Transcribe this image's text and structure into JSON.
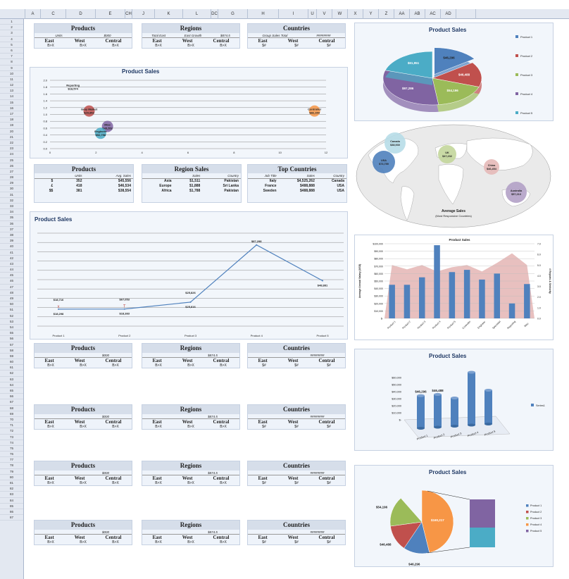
{
  "columns": [
    "",
    "A",
    "C",
    "D",
    "E",
    "CH",
    "J",
    "K",
    "L",
    "DC",
    "G",
    "H",
    "I",
    "U",
    "V",
    "W",
    "X",
    "Y",
    "Z",
    "AA",
    "AB",
    "AC",
    "AD",
    ""
  ],
  "rows": [
    "1",
    "2",
    "3",
    "4",
    "5",
    "6",
    "7",
    "8",
    "9",
    "10",
    "11",
    "12",
    "13",
    "14",
    "15",
    "16",
    "17",
    "18",
    "19",
    "20",
    "21",
    "22",
    "23",
    "24",
    "25",
    "26",
    "27",
    "28",
    "29",
    "30",
    "31",
    "32",
    "33",
    "34",
    "35",
    "36",
    "37",
    "38",
    "39",
    "40",
    "41",
    "42",
    "43",
    "44",
    "45",
    "46",
    "47",
    "48",
    "49",
    "50",
    "51",
    "52",
    "53",
    "54",
    "55",
    "56",
    "57",
    "58",
    "59",
    "60",
    "61",
    "62",
    "63",
    "64",
    "65",
    "66",
    "67",
    "68",
    "69",
    "70",
    "71",
    "72",
    "73",
    "74",
    "75",
    "76",
    "77",
    "78",
    "79",
    "80",
    "81",
    "82",
    "83",
    "84",
    "85",
    "86",
    "87"
  ],
  "kpi_rows": [
    {
      "products": {
        "title": "Products",
        "sub": [
          "Units",
          "$000"
        ],
        "heads": [
          "East",
          "West",
          "Central"
        ],
        "vals": [
          "B>X",
          "B>X",
          "B>X"
        ]
      },
      "regions": {
        "title": "Regions",
        "sub": [
          "Total East",
          "East Growth",
          "$874.5"
        ],
        "heads": [
          "East",
          "West",
          "Central"
        ],
        "vals": [
          "B>X",
          "B>X",
          "B>X"
        ]
      },
      "countries": {
        "title": "Countries",
        "sub": [
          "Group Sales Total",
          "########"
        ],
        "heads": [
          "East",
          "West",
          "Central"
        ],
        "vals": [
          "$#",
          "$#",
          "$#"
        ]
      }
    },
    {
      "products": {
        "title": "Products",
        "sub": [
          "",
          "$000"
        ],
        "heads": [
          "East",
          "West",
          "Central"
        ],
        "vals": [
          "B>X",
          "B>X",
          "B>X"
        ]
      },
      "regions": {
        "title": "Regions",
        "sub": [
          "",
          "$874.5"
        ],
        "heads": [
          "East",
          "West",
          "Central"
        ],
        "vals": [
          "B>X",
          "B>X",
          "B>X"
        ]
      },
      "countries": {
        "title": "Countries",
        "sub": [
          "",
          "########"
        ],
        "heads": [
          "East",
          "West",
          "Central"
        ],
        "vals": [
          "$#",
          "$#",
          "$#"
        ]
      }
    },
    {
      "products": {
        "title": "Products",
        "sub": [
          "",
          "$000"
        ],
        "heads": [
          "East",
          "West",
          "Central"
        ],
        "vals": [
          "B>X",
          "B>X",
          "B>X"
        ]
      },
      "regions": {
        "title": "Regions",
        "sub": [
          "",
          "$874.5"
        ],
        "heads": [
          "East",
          "West",
          "Central"
        ],
        "vals": [
          "B>X",
          "B>X",
          "B>X"
        ]
      },
      "countries": {
        "title": "Countries",
        "sub": [
          "",
          "########"
        ],
        "heads": [
          "East",
          "West",
          "Central"
        ],
        "vals": [
          "$#",
          "$#",
          "$#"
        ]
      }
    },
    {
      "products": {
        "title": "Products",
        "sub": [
          "",
          "$000"
        ],
        "heads": [
          "East",
          "West",
          "Central"
        ],
        "vals": [
          "B>X",
          "B>X",
          "B>X"
        ]
      },
      "regions": {
        "title": "Regions",
        "sub": [
          "",
          "$874.5"
        ],
        "heads": [
          "East",
          "West",
          "Central"
        ],
        "vals": [
          "B>X",
          "B>X",
          "B>X"
        ]
      },
      "countries": {
        "title": "Countries",
        "sub": [
          "",
          "########"
        ],
        "heads": [
          "East",
          "West",
          "Central"
        ],
        "vals": [
          "$#",
          "$#",
          "$#"
        ]
      }
    },
    {
      "products": {
        "title": "Products",
        "sub": [
          "",
          "$000"
        ],
        "heads": [
          "East",
          "West",
          "Central"
        ],
        "vals": [
          "B>X",
          "B>X",
          "B>X"
        ]
      },
      "regions": {
        "title": "Regions",
        "sub": [
          "",
          "$874.5"
        ],
        "heads": [
          "East",
          "West",
          "Central"
        ],
        "vals": [
          "B>X",
          "B>X",
          "B>X"
        ]
      },
      "countries": {
        "title": "Countries",
        "sub": [
          "",
          "########"
        ],
        "heads": [
          "East",
          "West",
          "Central"
        ],
        "vals": [
          "$#",
          "$#",
          "$#"
        ]
      }
    }
  ],
  "tables": {
    "products": {
      "title": "Products",
      "cols": [
        "",
        "Units",
        "Avg. Sales"
      ],
      "rows": [
        [
          "$",
          "352",
          "$45,556"
        ],
        [
          "£",
          "418",
          "$46,534"
        ],
        [
          "$$",
          "381",
          "$38,554"
        ]
      ]
    },
    "regions": {
      "title": "Region Sales",
      "cols": [
        "",
        "Sales",
        "Country"
      ],
      "rows": [
        [
          "Asia",
          "$1,511",
          "Pakistan"
        ],
        [
          "Europe",
          "$1,888",
          "Sri Lanka"
        ],
        [
          "Africa",
          "$1,788",
          "Pakistan"
        ]
      ]
    },
    "countries": {
      "title": "Top Countries",
      "cols": [
        "Job Title",
        "Sales",
        "Country"
      ],
      "rows": [
        [
          "Italy",
          "$4,525,262",
          "Canada"
        ],
        [
          "France",
          "$488,888",
          "USA"
        ],
        [
          "Sweden",
          "$488,888",
          "USA"
        ]
      ]
    }
  },
  "colors": {
    "blue": "#4f81bd",
    "red": "#c0504d",
    "green": "#9bbb59",
    "purple": "#8064a2",
    "teal": "#4bacc6",
    "orange": "#f79646",
    "pink": "#e6b9b8"
  },
  "chart_data": [
    {
      "type": "scatter",
      "title": "Product Sales",
      "x_ticks": [
        "0",
        "2",
        "4",
        "6",
        "8",
        "10",
        "12"
      ],
      "y_ticks": [
        "0.0",
        "0.2",
        "0.4",
        "0.6",
        "0.8",
        "1.0",
        "1.2",
        "1.4",
        "1.6",
        "1.8",
        "2.0"
      ],
      "xlim": [
        0,
        12
      ],
      "ylim": [
        0,
        2.0
      ],
      "points": [
        {
          "label": "Reporting",
          "value": "$18,574",
          "x": 1,
          "y": 1.8,
          "color": ""
        },
        {
          "label": "Gray Market",
          "value": "$29,852",
          "x": 1.7,
          "y": 1.1,
          "color": "#c0504d"
        },
        {
          "label": "Misc",
          "value": "$45,552",
          "x": 2.5,
          "y": 0.65,
          "color": "#8064a2"
        },
        {
          "label": "Engineer",
          "value": "$52,758",
          "x": 2.2,
          "y": 0.45,
          "color": "#4bacc6"
        },
        {
          "label": "Controller",
          "value": "$82,154",
          "x": 11.5,
          "y": 1.1,
          "color": "#f79646"
        }
      ]
    },
    {
      "type": "line",
      "title": "Product Sales",
      "categories": [
        "Product 1",
        "Product 2",
        "Product 3",
        "Product 4",
        "Product 5"
      ],
      "values": [
        18298,
        18383,
        25816,
        87298,
        48881
      ],
      "data_labels": [
        "$18,298",
        "$18,383",
        "$25,816",
        "$87,298",
        "$48,881"
      ],
      "upper_labels": [
        "$18,716",
        "$67,053",
        "$25,826",
        "",
        ""
      ],
      "ylim": [
        0,
        100000
      ]
    },
    {
      "type": "pie",
      "title": "Product Sales",
      "labels": [
        "Product 1",
        "Product 2",
        "Product 3",
        "Product 4",
        "Product 5"
      ],
      "values": [
        46296,
        46488,
        54196,
        97286,
        61951
      ],
      "data_labels": [
        "$46,296",
        "$46,488",
        "$54,196",
        "$97,286",
        "$61,951"
      ],
      "colors": [
        "#4f81bd",
        "#c0504d",
        "#9bbb59",
        "#8064a2",
        "#4bacc6"
      ]
    },
    {
      "type": "bubble-map",
      "title": "Average Sales",
      "subtitle": "(Most Responsive Countries)",
      "bubbles": [
        {
          "label": "Canada",
          "value": "$38,930",
          "color": "#b7dde8"
        },
        {
          "label": "USA",
          "value": "$73,759",
          "color": "#4f81bd"
        },
        {
          "label": "UK",
          "value": "$47,232",
          "color": "#c3d69b"
        },
        {
          "label": "China",
          "value": "$46,454",
          "color": "#e6b9b8"
        },
        {
          "label": "Australia",
          "value": "$57,213",
          "color": "#b2a1c7"
        }
      ]
    },
    {
      "type": "bar",
      "title": "Product Sales",
      "categories": [
        "Product 1",
        "Product 2",
        "Product 3",
        "Product 4",
        "Product 5",
        "Controller",
        "Engineer",
        "Specialist",
        "Reporting",
        "Misc"
      ],
      "values": [
        45000,
        45000,
        55000,
        98000,
        62000,
        65000,
        52000,
        60000,
        20000,
        46000
      ],
      "area_values": [
        5.0,
        4.6,
        5.0,
        4.4,
        4.8,
        5.0,
        4.4,
        5.2,
        6.1,
        5.0
      ],
      "y_ticks": [
        "$-",
        "$10,000",
        "$20,000",
        "$30,000",
        "$40,000",
        "$50,000",
        "$60,000",
        "$70,000",
        "$80,000",
        "$90,000",
        "$100,000"
      ],
      "y2_ticks": [
        "0.0",
        "1.0",
        "2.0",
        "3.0",
        "4.0",
        "5.0",
        "6.0",
        "7.0"
      ],
      "ylim": [
        0,
        100000
      ],
      "y2lim": [
        0,
        7
      ],
      "ylabel": "Average Annual Salary (USD)",
      "y2label": "# Reports & Seniority"
    },
    {
      "type": "bar3d",
      "title": "Product Sales",
      "categories": [
        "Product 1",
        "Product 2",
        "Product 3",
        "Product 4",
        "Product 5"
      ],
      "values": [
        46296,
        46488,
        40000,
        75000,
        48000
      ],
      "data_labels": [
        "$46,296",
        "$46,488",
        "",
        "",
        ""
      ],
      "y_ticks": [
        "$-",
        "$10,000",
        "$20,000",
        "$30,000",
        "$40,000",
        "$50,000",
        "$60,000"
      ],
      "series": [
        {
          "name": "Series1",
          "values": [
            46296,
            46488,
            40000,
            75000,
            48000
          ]
        }
      ]
    },
    {
      "type": "pie",
      "title": "Product Sales",
      "labels": [
        "Product 1",
        "Product 2",
        "Product 3",
        "Product 4",
        "Product 5"
      ],
      "values": [
        46296,
        46488,
        54196,
        160217,
        40000
      ],
      "data_labels": [
        "$46,296",
        "$46,488",
        "$54,196",
        "$160,217",
        ""
      ],
      "colors": [
        "#4f81bd",
        "#c0504d",
        "#9bbb59",
        "#f79646",
        "#8064a2"
      ]
    }
  ]
}
